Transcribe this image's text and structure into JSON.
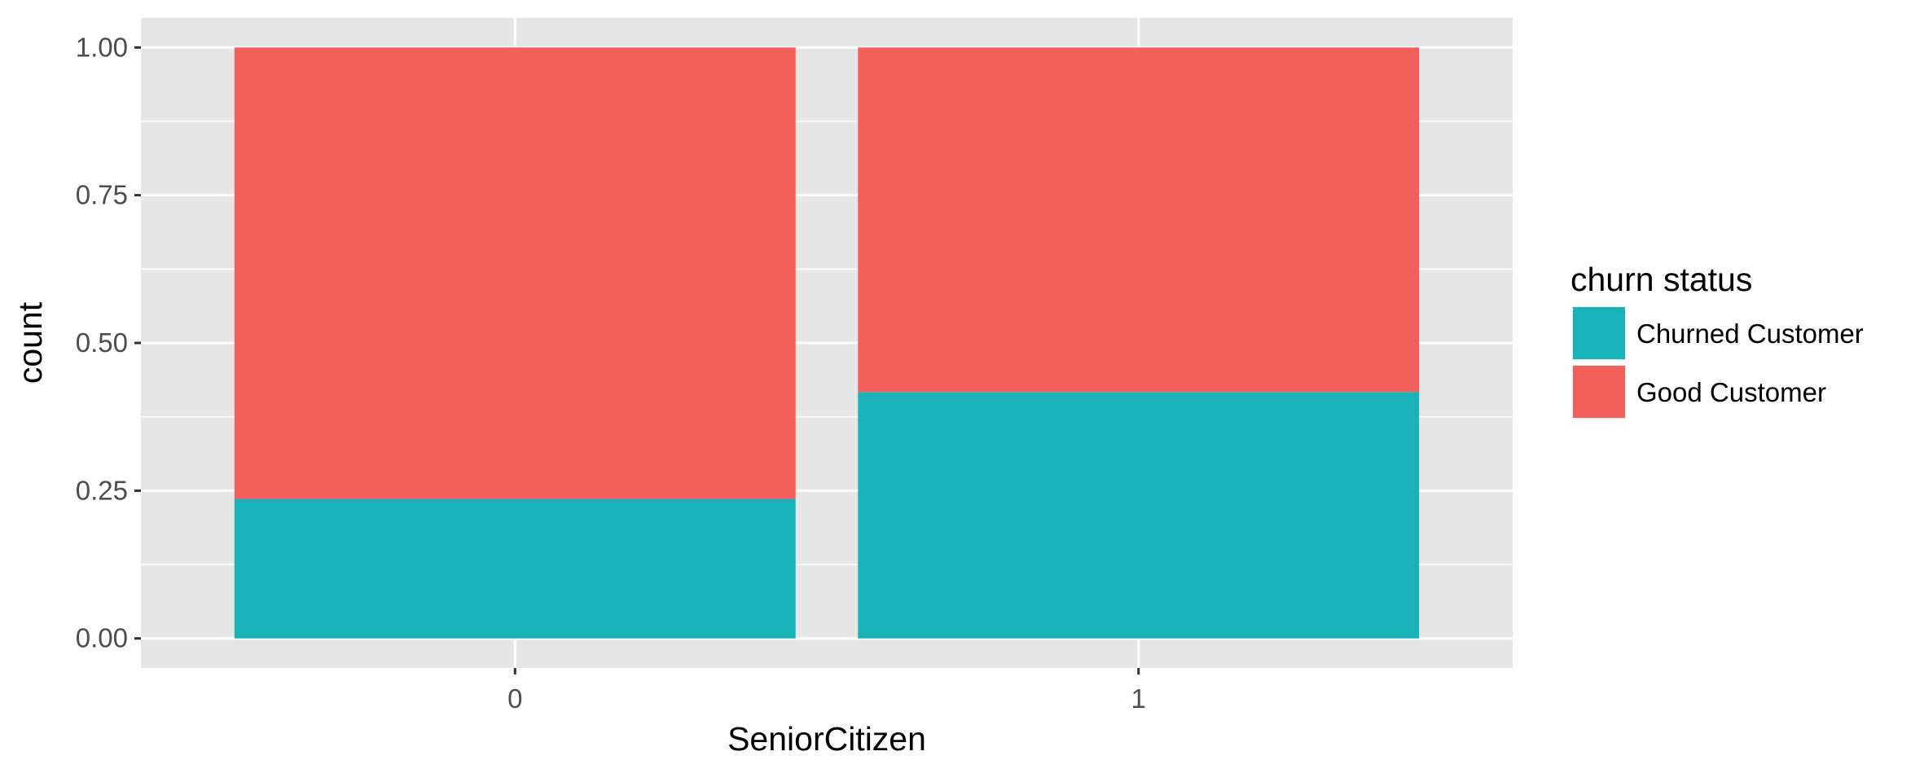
{
  "chart_data": {
    "type": "bar",
    "stacked": true,
    "categories": [
      "0",
      "1"
    ],
    "series": [
      {
        "name": "Churned Customer",
        "values": [
          0.236,
          0.417
        ],
        "color": "#19b2b8"
      },
      {
        "name": "Good Customer",
        "values": [
          0.764,
          0.583
        ],
        "color": "#f3605c"
      }
    ],
    "xlabel": "SeniorCitizen",
    "ylabel": "count",
    "ylim": [
      -0.05,
      1.05
    ],
    "yticks": [
      "0.00",
      "0.25",
      "0.50",
      "0.75",
      "1.00"
    ],
    "grid": true,
    "legend": {
      "title": "churn status",
      "position": "right"
    },
    "panel_color": "#e6e6e6"
  }
}
